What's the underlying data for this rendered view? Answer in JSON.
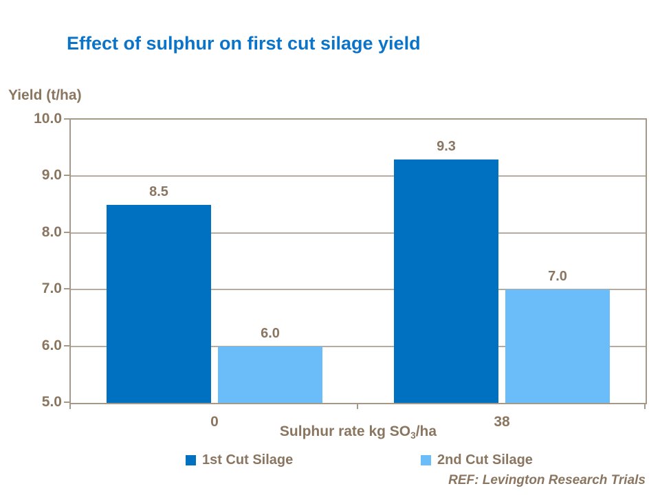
{
  "slide": {
    "title": "Effect of sulphur on first cut silage yield",
    "ref_note": "REF: Levington Research Trials"
  },
  "chart_data": {
    "type": "bar",
    "title": "Effect of sulphur on first cut silage yield",
    "categories": [
      "0",
      "38"
    ],
    "series": [
      {
        "name": "1st Cut Silage",
        "color": "#0070C0",
        "values": [
          8.5,
          9.3
        ]
      },
      {
        "name": "2nd Cut Silage",
        "color": "#6ABDF9",
        "values": [
          6.0,
          7.0
        ]
      }
    ],
    "ylabel": "Yield (t/ha)",
    "xlabel": "Sulphur rate kg SO3/ha",
    "xlabel_parts": {
      "pre": "Sulphur rate kg SO",
      "sub": "3",
      "post": "/ha"
    },
    "ylim": [
      5.0,
      10.0
    ],
    "ytick_step": 1.0,
    "yticks": [
      "10.0",
      "9.0",
      "8.0",
      "7.0",
      "6.0",
      "5.0"
    ],
    "grid": "horizontal",
    "legend_position": "bottom",
    "colors": {
      "title": "#0C74C8",
      "text": "#8A7660",
      "axis": "#A49886",
      "gridline": "#B5AA9C"
    }
  }
}
